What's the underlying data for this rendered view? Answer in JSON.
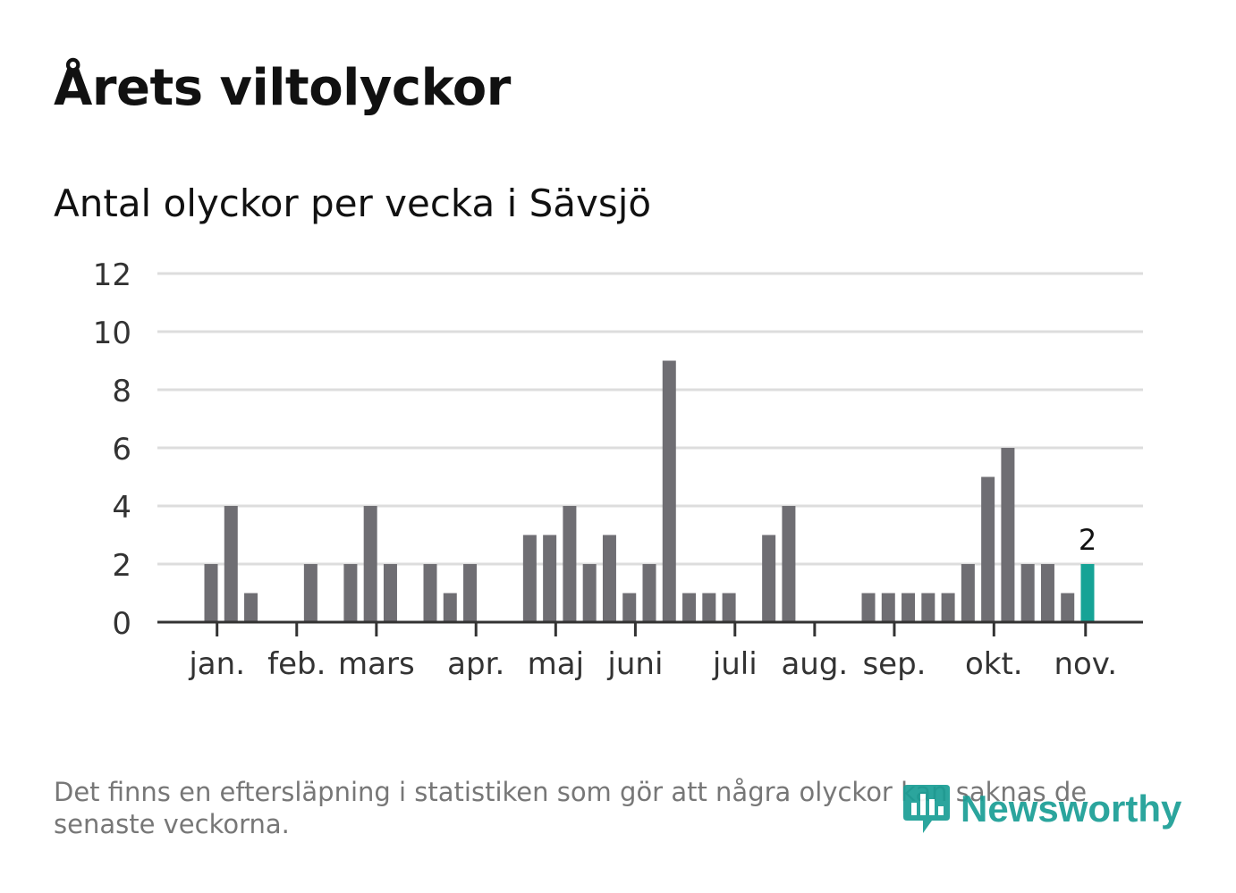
{
  "title": "Årets viltolyckor",
  "footnote": "Det finns en eftersläpning i statistiken som gör att några olyckor kan saknas de senaste veckorna.",
  "logo": {
    "name": "Newsworthy",
    "icon": "newsworthy-logo-icon",
    "color": "#1a9e95"
  },
  "colors": {
    "bar": "#6f6e73",
    "highlight": "#16a396",
    "grid": "#dddddd",
    "axis": "#333333",
    "text": "#111111",
    "muted": "#777777"
  },
  "chart_data": {
    "type": "bar",
    "title": "Antal olyckor per vecka i Sävsjö",
    "xlabel": "",
    "ylabel": "",
    "ylim": [
      0,
      12
    ],
    "yticks": [
      0,
      2,
      4,
      6,
      8,
      10,
      12
    ],
    "grid": true,
    "x_domain": [
      1,
      48
    ],
    "values": [
      2,
      4,
      1,
      0,
      0,
      2,
      0,
      2,
      4,
      2,
      0,
      2,
      1,
      2,
      0,
      0,
      3,
      3,
      4,
      2,
      3,
      1,
      2,
      9,
      1,
      1,
      1,
      0,
      3,
      4,
      0,
      0,
      0,
      1,
      1,
      1,
      1,
      1,
      2,
      5,
      6,
      2,
      2,
      1,
      2
    ],
    "bar_weeks": [
      1,
      2,
      3,
      4,
      5,
      6,
      7,
      8,
      9,
      10,
      11,
      12,
      13,
      14,
      15,
      16,
      17,
      18,
      19,
      20,
      21,
      22,
      23,
      24,
      25,
      26,
      27,
      28,
      29,
      30,
      31,
      32,
      33,
      34,
      35,
      36,
      37,
      38,
      39,
      40,
      41,
      42,
      43,
      44,
      45
    ],
    "highlight_week": 45,
    "highlight_label": "2",
    "month_ticks": [
      {
        "label": "jan.",
        "week": 1.3
      },
      {
        "label": "feb.",
        "week": 5.3
      },
      {
        "label": "mars",
        "week": 9.3
      },
      {
        "label": "apr.",
        "week": 14.3
      },
      {
        "label": "maj",
        "week": 18.3
      },
      {
        "label": "juni",
        "week": 22.3
      },
      {
        "label": "juli",
        "week": 27.3
      },
      {
        "label": "aug.",
        "week": 31.3
      },
      {
        "label": "sep.",
        "week": 35.3
      },
      {
        "label": "okt.",
        "week": 40.3
      },
      {
        "label": "nov.",
        "week": 44.9
      }
    ]
  }
}
